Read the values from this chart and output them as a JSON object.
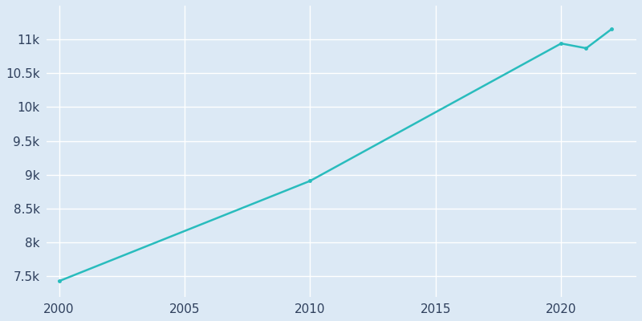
{
  "years": [
    2000,
    2010,
    2020,
    2021,
    2022
  ],
  "population": [
    7430,
    8910,
    10940,
    10870,
    11150
  ],
  "line_color": "#29bcbd",
  "marker_color": "#29bcbd",
  "bg_color": "#dce9f5",
  "grid_color": "#ffffff",
  "text_color": "#2e3f5c",
  "ylim": [
    7200,
    11500
  ],
  "xlim": [
    1999.5,
    2023.0
  ],
  "ytick_labels": [
    "7.5k",
    "8k",
    "8.5k",
    "9k",
    "9.5k",
    "10k",
    "10.5k",
    "11k"
  ],
  "ytick_values": [
    7500,
    8000,
    8500,
    9000,
    9500,
    10000,
    10500,
    11000
  ],
  "xtick_values": [
    2000,
    2005,
    2010,
    2015,
    2020
  ],
  "figsize": [
    8.0,
    4.0
  ],
  "dpi": 100
}
